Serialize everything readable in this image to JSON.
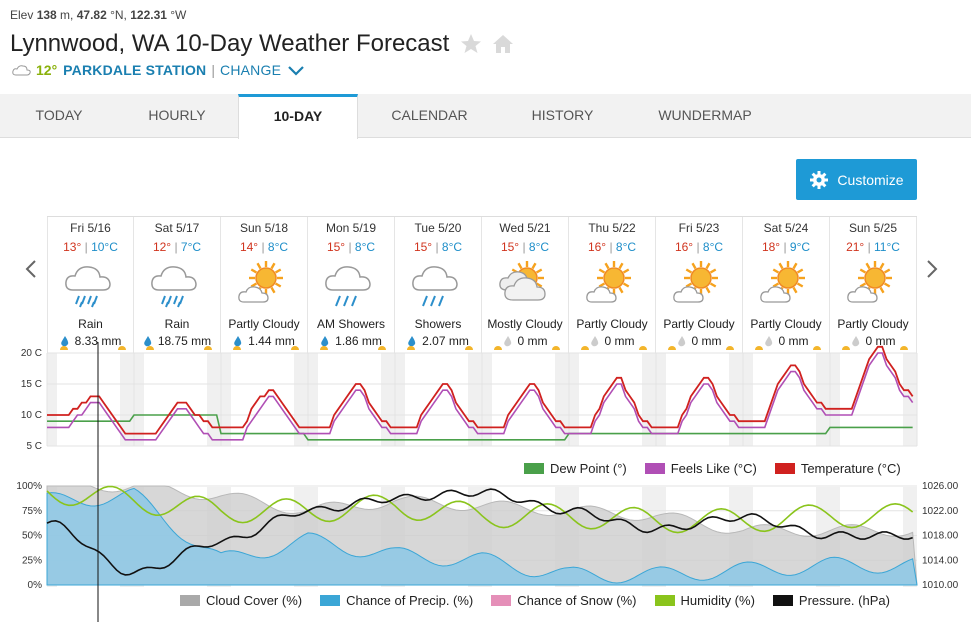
{
  "meta": {
    "elev_label": "Elev",
    "elev_value": "138",
    "elev_unit": " m, ",
    "lat_value": "47.82",
    "lat_unit": " °N, ",
    "lon_value": "122.31",
    "lon_unit": " °W"
  },
  "header": {
    "title": "Lynnwood, WA 10-Day Weather Forecast",
    "current_temp": "12°",
    "station": "PARKDALE STATION",
    "separator": "|",
    "change": "CHANGE"
  },
  "tabs": [
    {
      "label": "TODAY"
    },
    {
      "label": "HOURLY"
    },
    {
      "label": "10-DAY"
    },
    {
      "label": "CALENDAR"
    },
    {
      "label": "HISTORY"
    },
    {
      "label": "WUNDERMAP"
    }
  ],
  "customize_label": "Customize",
  "days": [
    {
      "name": "Fri 5/16",
      "hi": "13°",
      "lo": "10°C",
      "icon": "rain-icon",
      "cond": "Rain",
      "precip": "8.33 mm",
      "wet": true
    },
    {
      "name": "Sat 5/17",
      "hi": "12°",
      "lo": "7°C",
      "icon": "rain-icon",
      "cond": "Rain",
      "precip": "18.75 mm",
      "wet": true
    },
    {
      "name": "Sun 5/18",
      "hi": "14°",
      "lo": "8°C",
      "icon": "partly-cloudy-icon",
      "cond": "Partly Cloudy",
      "precip": "1.44 mm",
      "wet": true
    },
    {
      "name": "Mon 5/19",
      "hi": "15°",
      "lo": "8°C",
      "icon": "showers-icon",
      "cond": "AM Showers",
      "precip": "1.86 mm",
      "wet": true
    },
    {
      "name": "Tue 5/20",
      "hi": "15°",
      "lo": "8°C",
      "icon": "showers-icon",
      "cond": "Showers",
      "precip": "2.07 mm",
      "wet": true
    },
    {
      "name": "Wed 5/21",
      "hi": "15°",
      "lo": "8°C",
      "icon": "mostly-cloudy-icon",
      "cond": "Mostly Cloudy",
      "precip": "0 mm",
      "wet": false
    },
    {
      "name": "Thu 5/22",
      "hi": "16°",
      "lo": "8°C",
      "icon": "partly-cloudy-icon",
      "cond": "Partly Cloudy",
      "precip": "0 mm",
      "wet": false
    },
    {
      "name": "Fri 5/23",
      "hi": "16°",
      "lo": "8°C",
      "icon": "partly-cloudy-icon",
      "cond": "Partly Cloudy",
      "precip": "0 mm",
      "wet": false
    },
    {
      "name": "Sat 5/24",
      "hi": "18°",
      "lo": "9°C",
      "icon": "partly-cloudy-icon",
      "cond": "Partly Cloudy",
      "precip": "0 mm",
      "wet": false
    },
    {
      "name": "Sun 5/25",
      "hi": "21°",
      "lo": "11°C",
      "icon": "partly-cloudy-icon",
      "cond": "Partly Cloudy",
      "precip": "0 mm",
      "wet": false
    }
  ],
  "colors": {
    "accent": "#1e9ad6",
    "temperature": "#d0211f",
    "feels_like": "#b04fb5",
    "dew_point": "#4aa04a",
    "cloud_cover": "#a9a9a9",
    "precip": "#3ba6d6",
    "snow": "#e58fb8",
    "humidity": "#8ac41c",
    "pressure": "#111111"
  },
  "legend_temp": [
    {
      "label": "Dew Point (°)",
      "color": "#4aa04a"
    },
    {
      "label": "Feels Like (°C)",
      "color": "#b04fb5"
    },
    {
      "label": "Temperature (°C)",
      "color": "#d0211f"
    }
  ],
  "legend_bottom": [
    {
      "label": "Cloud Cover (%)",
      "color": "#a9a9a9"
    },
    {
      "label": "Chance of Precip. (%)",
      "color": "#3ba6d6"
    },
    {
      "label": "Chance of Snow (%)",
      "color": "#e58fb8"
    },
    {
      "label": "Humidity (%)",
      "color": "#8ac41c"
    },
    {
      "label": "Pressure. (hPa)",
      "color": "#111111"
    }
  ],
  "chart_data": [
    {
      "type": "line",
      "x": [
        "Fri 5/16",
        "Sat 5/17",
        "Sun 5/18",
        "Mon 5/19",
        "Tue 5/20",
        "Wed 5/21",
        "Thu 5/22",
        "Fri 5/23",
        "Sat 5/24",
        "Sun 5/25"
      ],
      "y_ticks": [
        "20 C",
        "15 C",
        "10 C",
        "5 C"
      ],
      "ylim": [
        5,
        20
      ],
      "series": [
        {
          "name": "Temperature (°C)",
          "highs": [
            13,
            12,
            14,
            15,
            15,
            15,
            16,
            16,
            18,
            21
          ],
          "lows": [
            10,
            7,
            8,
            8,
            8,
            8,
            8,
            8,
            9,
            11
          ]
        },
        {
          "name": "Feels Like (°C)",
          "highs": [
            12,
            11,
            13,
            14,
            14,
            14,
            15,
            15,
            17,
            20
          ],
          "lows": [
            8,
            6,
            6,
            7,
            7,
            7,
            7,
            7,
            8,
            10
          ]
        },
        {
          "name": "Dew Point (°)",
          "values": [
            9,
            10,
            7,
            6,
            6,
            6,
            7,
            7,
            7,
            8
          ]
        }
      ]
    },
    {
      "type": "area",
      "x": [
        "Fri 5/16",
        "Sat 5/17",
        "Sun 5/18",
        "Mon 5/19",
        "Tue 5/20",
        "Wed 5/21",
        "Thu 5/22",
        "Fri 5/23",
        "Sat 5/24",
        "Sun 5/25"
      ],
      "y_ticks_left": [
        "100%",
        "75%",
        "50%",
        "25%",
        "0%"
      ],
      "y_ticks_right": [
        "1026.00",
        "1022.00",
        "1018.00",
        "1014.00",
        "1010.00"
      ],
      "ylim_left": [
        0,
        100
      ],
      "ylim_right": [
        1010,
        1026
      ],
      "series": [
        {
          "name": "Cloud Cover (%)",
          "values": [
            100,
            100,
            90,
            75,
            85,
            80,
            75,
            70,
            55,
            55
          ]
        },
        {
          "name": "Chance of Precip. (%)",
          "values": [
            85,
            90,
            25,
            45,
            30,
            25,
            10,
            10,
            15,
            20
          ]
        },
        {
          "name": "Humidity (%)",
          "values": [
            95,
            85,
            75,
            75,
            80,
            70,
            70,
            65,
            65,
            70
          ]
        },
        {
          "name": "Pressure. (hPa)",
          "values": [
            1020,
            1012,
            1017,
            1022,
            1024,
            1025,
            1022,
            1019,
            1021,
            1018
          ]
        }
      ]
    }
  ]
}
